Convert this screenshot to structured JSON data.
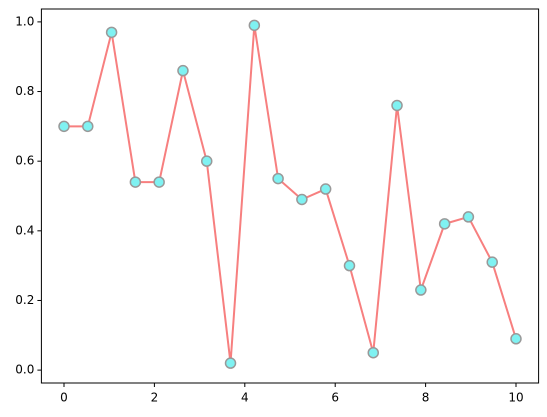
{
  "chart_data": {
    "type": "line",
    "x": [
      0,
      0.526,
      1.053,
      1.579,
      2.105,
      2.632,
      3.158,
      3.684,
      4.211,
      4.737,
      5.263,
      5.789,
      6.316,
      6.842,
      7.368,
      7.895,
      8.421,
      8.947,
      9.474,
      10
    ],
    "series": [
      {
        "color": "#f77f7f",
        "marker_color": "#7ff2f2",
        "marker_edge": "#999999",
        "values": [
          0.7,
          0.7,
          0.97,
          0.54,
          0.54,
          0.86,
          0.6,
          0.02,
          0.99,
          0.55,
          0.49,
          0.52,
          0.3,
          0.05,
          0.76,
          0.23,
          0.42,
          0.44,
          0.31,
          0.09
        ]
      }
    ],
    "xlim": [
      -0.5,
      10.5
    ],
    "xticks": [
      0,
      2,
      4,
      6,
      8,
      10
    ],
    "ylim": [
      -0.037,
      1.037
    ],
    "yticks": [
      {
        "value": 0,
        "label": "0.0"
      },
      0.2,
      0.4,
      0.6,
      0.8,
      {
        "value": 1,
        "label": "1.0"
      }
    ],
    "grid": false
  }
}
